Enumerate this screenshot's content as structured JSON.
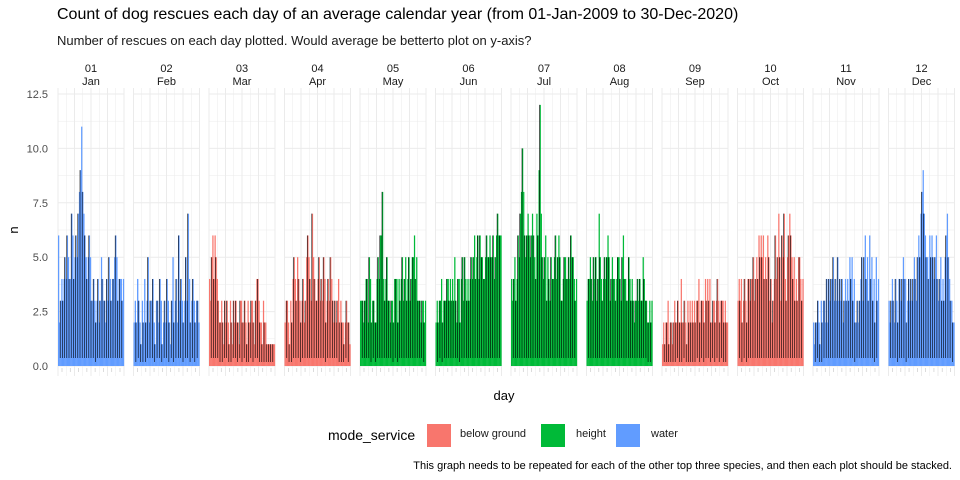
{
  "title": "Count of dog rescues each day of an average calendar year (from 01-Jan-2009 to 30-Dec-2020)",
  "subtitle": "Number of rescues on each day plotted. Would average be betterto plot on y-axis?",
  "caption": "This graph needs to be repeated for each of the other top three species, and then each plot should be stacked.",
  "legend": {
    "title": "mode_service",
    "items": [
      {
        "label": "below ground",
        "color": "#F8766D"
      },
      {
        "label": "height",
        "color": "#00BA38"
      },
      {
        "label": "water",
        "color": "#619CFF"
      }
    ]
  },
  "chart_data": {
    "type": "bar",
    "xlabel": "day",
    "ylabel": "n",
    "ylim": [
      0,
      12.5
    ],
    "yticks": [
      "0.0",
      "2.5",
      "5.0",
      "7.5",
      "10.0",
      "12.5"
    ],
    "grid": true,
    "legend_position": "bottom",
    "panels": [
      {
        "num": "01",
        "month": "Jan",
        "service": "water",
        "values": [
          6,
          2,
          3,
          4,
          3,
          4,
          5,
          4,
          6,
          5,
          4,
          4,
          7,
          6,
          4,
          5,
          6,
          5,
          7,
          8,
          9,
          11,
          8,
          7,
          6,
          5,
          4,
          5,
          6,
          5,
          3,
          3,
          4,
          3,
          2,
          3,
          4,
          2,
          3,
          5,
          4,
          3,
          3,
          2,
          4,
          3,
          5,
          4,
          3,
          4,
          4,
          5,
          6,
          5,
          3,
          4,
          4,
          4,
          3,
          4
        ]
      },
      {
        "num": "02",
        "month": "Feb",
        "service": "water",
        "values": [
          2,
          3,
          2,
          4,
          3,
          2,
          1,
          3,
          2,
          4,
          2,
          3,
          5,
          2,
          3,
          3,
          4,
          2,
          1,
          3,
          3,
          2,
          4,
          3,
          1,
          2,
          3,
          2,
          4,
          3,
          2,
          1,
          3,
          5,
          2,
          3,
          4,
          2,
          6,
          3,
          4,
          3,
          2,
          3,
          5,
          3,
          7,
          4,
          2,
          3,
          4,
          3,
          2,
          3,
          3,
          2
        ]
      },
      {
        "num": "03",
        "month": "Mar",
        "service": "below ground",
        "values": [
          4,
          3,
          5,
          6,
          4,
          6,
          5,
          4,
          3,
          2,
          2,
          3,
          2,
          1,
          3,
          2,
          3,
          2,
          1,
          3,
          2,
          1,
          3,
          2,
          3,
          2,
          2,
          1,
          3,
          3,
          2,
          2,
          3,
          2,
          1,
          3,
          2,
          2,
          3,
          3,
          2,
          1,
          3,
          4,
          4,
          3,
          2,
          2,
          1,
          3,
          2,
          2,
          1,
          1,
          1,
          1,
          1,
          1,
          1,
          1
        ]
      },
      {
        "num": "04",
        "month": "Apr",
        "service": "below ground",
        "values": [
          2,
          3,
          3,
          2,
          1,
          3,
          2,
          4,
          5,
          4,
          3,
          5,
          4,
          3,
          2,
          3,
          4,
          2,
          3,
          5,
          6,
          5,
          4,
          3,
          7,
          5,
          4,
          3,
          3,
          4,
          5,
          3,
          4,
          3,
          5,
          4,
          2,
          3,
          4,
          3,
          5,
          4,
          3,
          2,
          3,
          2,
          3,
          4,
          2,
          3,
          2,
          2,
          1,
          2,
          3,
          2,
          2,
          1
        ]
      },
      {
        "num": "05",
        "month": "May",
        "service": "height",
        "values": [
          3,
          3,
          3,
          2,
          3,
          4,
          4,
          2,
          5,
          4,
          2,
          3,
          3,
          2,
          2,
          4,
          5,
          4,
          6,
          6,
          8,
          4,
          3,
          4,
          5,
          3,
          3,
          2,
          3,
          3,
          2,
          4,
          4,
          4,
          2,
          4,
          3,
          4,
          5,
          3,
          4,
          5,
          3,
          4,
          5,
          3,
          4,
          5,
          5,
          6,
          4,
          5,
          3,
          3,
          3,
          2,
          3,
          3,
          2,
          3
        ]
      },
      {
        "num": "06",
        "month": "Jun",
        "service": "height",
        "values": [
          2,
          3,
          2,
          3,
          3,
          4,
          2,
          3,
          3,
          3,
          4,
          4,
          3,
          4,
          3,
          4,
          3,
          5,
          3,
          2,
          4,
          4,
          2,
          4,
          5,
          3,
          5,
          4,
          3,
          4,
          3,
          4,
          5,
          4,
          5,
          6,
          4,
          5,
          6,
          4,
          6,
          5,
          5,
          4,
          4,
          5,
          6,
          5,
          5,
          6,
          5,
          5,
          6,
          4,
          5,
          6,
          7,
          6,
          6,
          6
        ]
      },
      {
        "num": "07",
        "month": "Jul",
        "service": "height",
        "values": [
          4,
          3,
          4,
          5,
          3,
          4,
          6,
          5,
          7,
          8,
          10,
          8,
          6,
          5,
          6,
          7,
          6,
          5,
          6,
          7,
          6,
          5,
          4,
          7,
          6,
          9,
          12,
          7,
          5,
          4,
          5,
          6,
          3,
          5,
          4,
          3,
          5,
          4,
          4,
          5,
          6,
          4,
          5,
          6,
          5,
          3,
          3,
          4,
          5,
          5,
          4,
          4,
          5,
          4,
          6,
          5,
          5,
          4,
          3,
          4
        ]
      },
      {
        "num": "08",
        "month": "Aug",
        "service": "height",
        "values": [
          3,
          4,
          4,
          5,
          4,
          3,
          5,
          4,
          5,
          3,
          4,
          7,
          5,
          4,
          3,
          4,
          5,
          4,
          5,
          6,
          5,
          3,
          4,
          5,
          4,
          4,
          3,
          4,
          5,
          5,
          4,
          3,
          5,
          6,
          4,
          4,
          3,
          3,
          5,
          4,
          3,
          4,
          3,
          2,
          3,
          3,
          4,
          3,
          4,
          3,
          3,
          5,
          4,
          3,
          3,
          2,
          2,
          3,
          2,
          3
        ]
      },
      {
        "num": "09",
        "month": "Sep",
        "service": "below ground",
        "values": [
          1,
          2,
          1,
          2,
          2,
          3,
          1,
          2,
          2,
          1,
          2,
          3,
          2,
          2,
          3,
          2,
          2,
          4,
          2,
          2,
          3,
          2,
          1,
          3,
          2,
          3,
          2,
          3,
          2,
          3,
          2,
          3,
          3,
          4,
          2,
          3,
          3,
          3,
          2,
          4,
          3,
          4,
          3,
          4,
          2,
          2,
          3,
          3,
          2,
          3,
          4,
          3,
          2,
          3,
          3,
          3,
          2,
          3,
          2,
          2
        ]
      },
      {
        "num": "10",
        "month": "Oct",
        "service": "below ground",
        "values": [
          3,
          4,
          3,
          4,
          2,
          3,
          4,
          3,
          2,
          4,
          4,
          3,
          4,
          4,
          5,
          3,
          4,
          5,
          4,
          6,
          5,
          6,
          5,
          6,
          4,
          5,
          4,
          6,
          5,
          3,
          4,
          2,
          3,
          4,
          6,
          4,
          5,
          7,
          5,
          3,
          6,
          5,
          7,
          4,
          3,
          5,
          6,
          7,
          6,
          5,
          4,
          5,
          3,
          4,
          3,
          5,
          5,
          4,
          3,
          4
        ]
      },
      {
        "num": "11",
        "month": "Nov",
        "service": "water",
        "values": [
          2,
          1,
          2,
          2,
          3,
          2,
          1,
          3,
          2,
          3,
          3,
          2,
          4,
          2,
          4,
          3,
          4,
          4,
          5,
          3,
          4,
          3,
          5,
          3,
          4,
          3,
          4,
          2,
          3,
          4,
          3,
          4,
          3,
          5,
          4,
          5,
          3,
          4,
          2,
          2,
          3,
          2,
          3,
          4,
          5,
          3,
          5,
          6,
          4,
          5,
          3,
          6,
          4,
          5,
          3,
          4,
          2,
          5,
          3,
          4
        ]
      },
      {
        "num": "12",
        "month": "Dec",
        "service": "water",
        "values": [
          3,
          2,
          3,
          4,
          3,
          2,
          4,
          3,
          2,
          4,
          4,
          3,
          4,
          5,
          4,
          4,
          2,
          3,
          4,
          3,
          4,
          3,
          4,
          5,
          4,
          3,
          5,
          6,
          5,
          7,
          8,
          9,
          7,
          6,
          5,
          5,
          4,
          6,
          5,
          6,
          5,
          4,
          5,
          6,
          4,
          3,
          4,
          5,
          3,
          4,
          3,
          5,
          6,
          7,
          5,
          4,
          3,
          3,
          2,
          2
        ]
      }
    ]
  }
}
